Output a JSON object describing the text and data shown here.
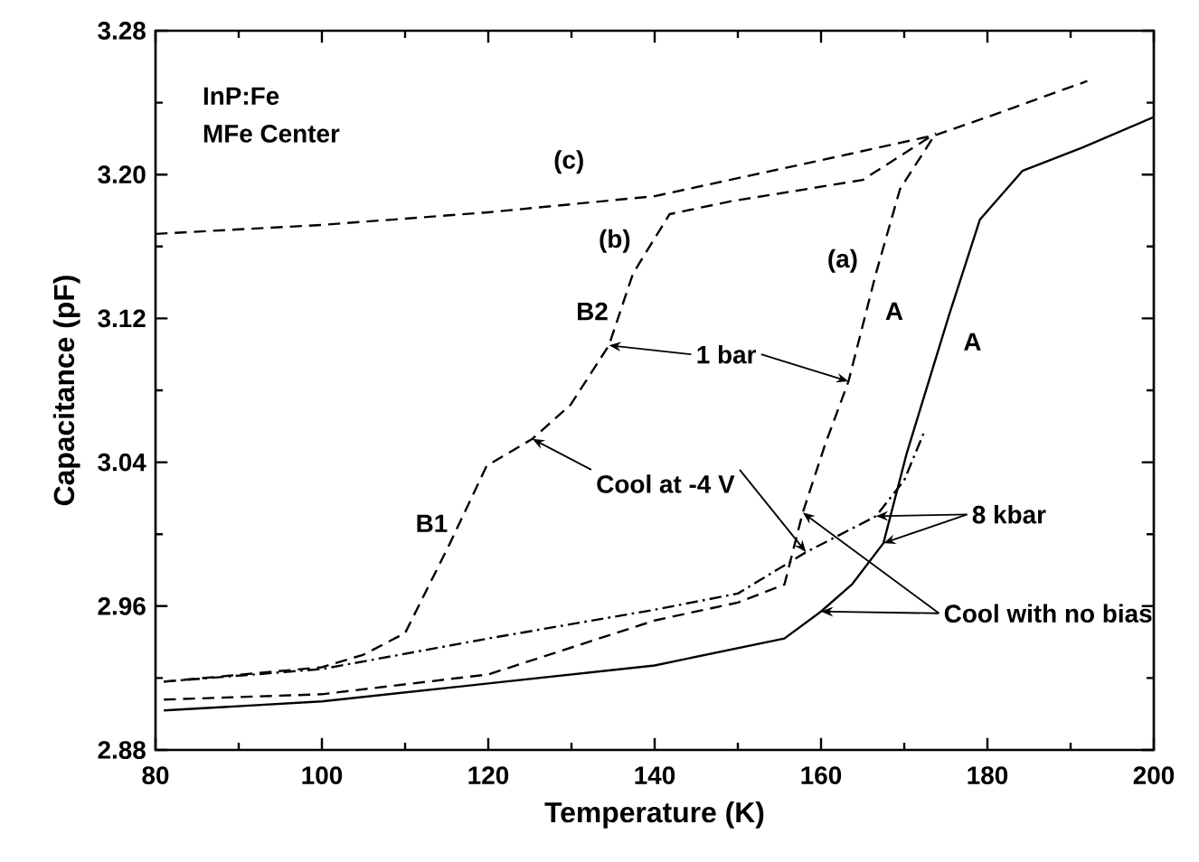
{
  "chart_data": {
    "type": "line",
    "xlabel": "Temperature (K)",
    "ylabel": "Capacitance (pF)",
    "xlim": [
      80,
      200
    ],
    "ylim": [
      2.88,
      3.28
    ],
    "xticks": [
      80,
      100,
      120,
      140,
      160,
      180,
      200
    ],
    "yticks": [
      2.88,
      2.96,
      3.04,
      3.12,
      {
        "value": 3.2,
        "label": "3.20"
      },
      3.28
    ],
    "grid": false,
    "series": [
      {
        "color": "#000000",
        "line_style": "dashed",
        "x": [
          80,
          100,
          120,
          140,
          150,
          160,
          173.8,
          180,
          192
        ],
        "values": [
          3.167,
          3.172,
          3.179,
          3.188,
          3.198,
          3.208,
          3.222,
          3.232,
          3.252
        ]
      },
      {
        "color": "#000000",
        "line_style": "dashed",
        "x": [
          81,
          100,
          105,
          110,
          115.4,
          119.8,
          125.3,
          129.9,
          134.5,
          137.4,
          141.8,
          149,
          165,
          173.8
        ],
        "values": [
          2.918,
          2.926,
          2.933,
          2.945,
          2.995,
          3.038,
          3.053,
          3.072,
          3.105,
          3.145,
          3.178,
          3.185,
          3.197,
          3.223
        ]
      },
      {
        "color": "#000000",
        "line_style": "dashed",
        "x": [
          81,
          100,
          120,
          140,
          150,
          155.6,
          157.8,
          160.5,
          163.3,
          166.6,
          169.5,
          173.8
        ],
        "values": [
          2.908,
          2.911,
          2.922,
          2.952,
          2.962,
          2.972,
          3.012,
          3.05,
          3.085,
          3.145,
          3.192,
          3.223
        ]
      },
      {
        "color": "#000000",
        "line_style": "dashdot",
        "x": [
          81,
          100,
          120,
          140,
          150,
          158.2,
          166.6,
          170,
          172.5
        ],
        "values": [
          2.918,
          2.925,
          2.942,
          2.958,
          2.967,
          2.99,
          3.01,
          3.03,
          3.058
        ]
      },
      {
        "color": "#000000",
        "line_style": "solid",
        "x": [
          81,
          100,
          120,
          140,
          155.6,
          160,
          163.7,
          167.5,
          170.3,
          175.4,
          179.1,
          184.2,
          191.4,
          200
        ],
        "values": [
          2.902,
          2.907,
          2.917,
          2.927,
          2.942,
          2.957,
          2.972,
          2.995,
          3.045,
          3.122,
          3.175,
          3.202,
          3.215,
          3.232
        ]
      }
    ],
    "annotations": [
      "InP:Fe",
      "MFe Center",
      "(c)",
      "(b)",
      "B2",
      "B1",
      {
        "text": "1 bar",
        "x": 163.3,
        "y": 3.085
      },
      {
        "text": "Cool at -4 V",
        "x": 125.3,
        "y": 3.053
      },
      "(a)",
      "A",
      "A",
      {
        "text": "8 kbar",
        "x": 167.5,
        "y": 2.995
      },
      {
        "text": "Cool with no bias",
        "x": 157.8,
        "y": 3.012
      }
    ]
  }
}
